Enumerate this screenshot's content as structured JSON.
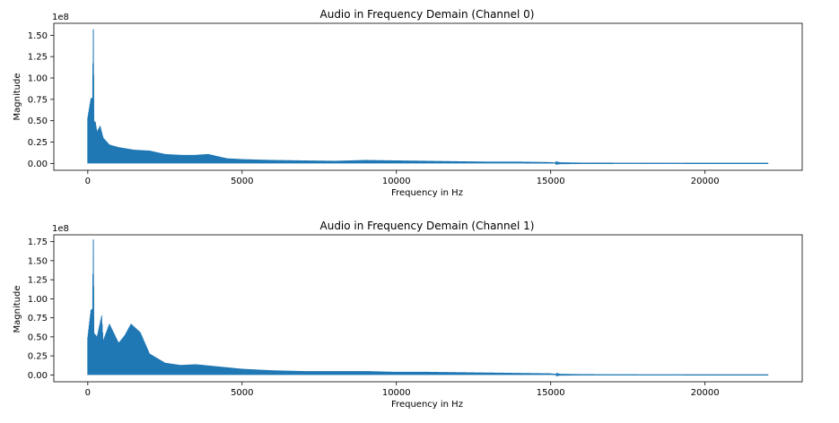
{
  "chart_data": [
    {
      "type": "line",
      "title": "Audio in Frequency Demain (Channel 0)",
      "xlabel": "Frequency in Hz",
      "ylabel": "Magnitude",
      "y_offset_label": "1e8",
      "xlim": [
        -1100,
        23150
      ],
      "ylim": [
        -0.08,
        1.64
      ],
      "xticks": [
        0,
        5000,
        10000,
        15000,
        20000
      ],
      "xtick_labels": [
        "0",
        "5000",
        "10000",
        "15000",
        "20000"
      ],
      "yticks": [
        0.0,
        0.25,
        0.5,
        0.75,
        1.0,
        1.25,
        1.5
      ],
      "ytick_labels": [
        "0.00",
        "0.25",
        "0.50",
        "0.75",
        "1.00",
        "1.25",
        "1.50"
      ],
      "grid": false,
      "color": "#1f77b4",
      "series": [
        {
          "x": [
            0,
            100,
            150,
            180,
            200,
            250,
            300,
            400,
            500,
            700,
            1000,
            1500,
            2000,
            2500,
            3000,
            3500,
            3900,
            4500,
            5000,
            6000,
            7000,
            8000,
            9000,
            10000,
            11000,
            12000,
            13000,
            14000,
            15000,
            15300,
            16000,
            18000,
            20000,
            22050
          ],
          "y": [
            0.54,
            0.76,
            0.77,
            1.57,
            0.5,
            0.48,
            0.37,
            0.44,
            0.3,
            0.22,
            0.19,
            0.16,
            0.15,
            0.11,
            0.1,
            0.1,
            0.11,
            0.06,
            0.05,
            0.04,
            0.035,
            0.03,
            0.04,
            0.035,
            0.03,
            0.025,
            0.02,
            0.02,
            0.015,
            0.005,
            0.003,
            0.002,
            0.002,
            0.002
          ]
        }
      ]
    },
    {
      "type": "line",
      "title": "Audio in Frequency Demain (Channel 1)",
      "xlabel": "Frequency in Hz",
      "ylabel": "Magnitude",
      "y_offset_label": "1e8",
      "xlim": [
        -1100,
        23150
      ],
      "ylim": [
        -0.09,
        1.84
      ],
      "xticks": [
        0,
        5000,
        10000,
        15000,
        20000
      ],
      "xtick_labels": [
        "0",
        "5000",
        "10000",
        "15000",
        "20000"
      ],
      "yticks": [
        0.0,
        0.25,
        0.5,
        0.75,
        1.0,
        1.25,
        1.5,
        1.75
      ],
      "ytick_labels": [
        "0.00",
        "0.25",
        "0.50",
        "0.75",
        "1.00",
        "1.25",
        "1.50",
        "1.75"
      ],
      "grid": false,
      "color": "#1f77b4",
      "series": [
        {
          "x": [
            0,
            100,
            150,
            180,
            200,
            300,
            450,
            500,
            600,
            700,
            1000,
            1200,
            1400,
            1700,
            2000,
            2500,
            3000,
            3500,
            4000,
            4500,
            5000,
            6000,
            7000,
            8000,
            9000,
            10000,
            11000,
            12000,
            13000,
            14000,
            15000,
            15300,
            16000,
            18000,
            20000,
            22050
          ],
          "y": [
            0.5,
            0.85,
            0.87,
            1.78,
            0.55,
            0.5,
            0.78,
            0.45,
            0.56,
            0.67,
            0.42,
            0.52,
            0.67,
            0.56,
            0.28,
            0.16,
            0.13,
            0.14,
            0.12,
            0.1,
            0.08,
            0.06,
            0.05,
            0.05,
            0.05,
            0.04,
            0.04,
            0.035,
            0.03,
            0.025,
            0.02,
            0.005,
            0.003,
            0.002,
            0.002,
            0.002
          ]
        }
      ]
    }
  ]
}
